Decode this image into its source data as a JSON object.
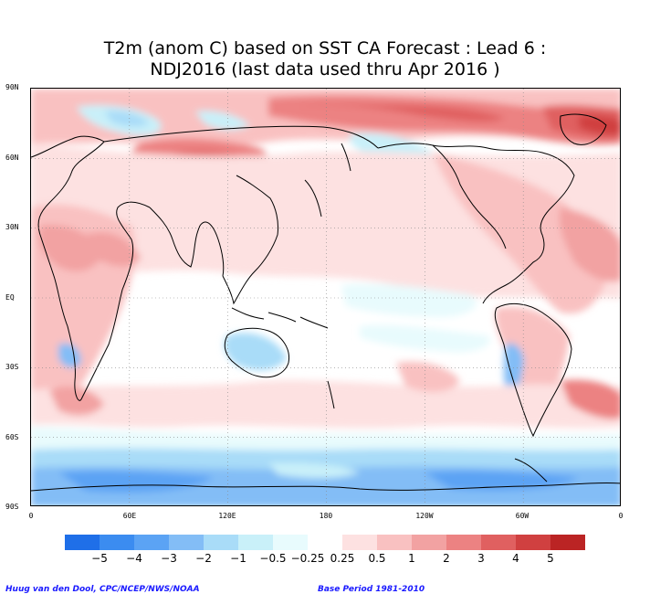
{
  "title": {
    "line1": "T2m (anom C) based on SST CA Forecast : Lead 6 :",
    "line2": "NDJ2016 (last data used thru Apr 2016 )"
  },
  "map": {
    "y_ticks": [
      "90N",
      "60N",
      "30N",
      "EQ",
      "30S",
      "60S",
      "90S"
    ],
    "x_ticks": [
      "0",
      "60E",
      "120E",
      "180",
      "120W",
      "60W",
      "0"
    ],
    "grid": "dotted"
  },
  "colorbar": {
    "colors": [
      "#1f6fe8",
      "#3b8cf0",
      "#5ba3f4",
      "#83bdf6",
      "#a9dcf8",
      "#c9f0f9",
      "#e8fbfd",
      "#ffffff",
      "#fde1e1",
      "#f9c1c1",
      "#f2a2a2",
      "#ec8282",
      "#e06060",
      "#d04040",
      "#bb2424"
    ],
    "labels": [
      "−5",
      "−4",
      "−3",
      "−2",
      "−1",
      "−0.5",
      "−0.25",
      "0.25",
      "0.5",
      "1",
      "2",
      "3",
      "4",
      "5"
    ]
  },
  "footer": {
    "left": "Huug van den Dool, CPC/NCEP/NWS/NOAA",
    "right": "Base Period 1981-2010"
  }
}
